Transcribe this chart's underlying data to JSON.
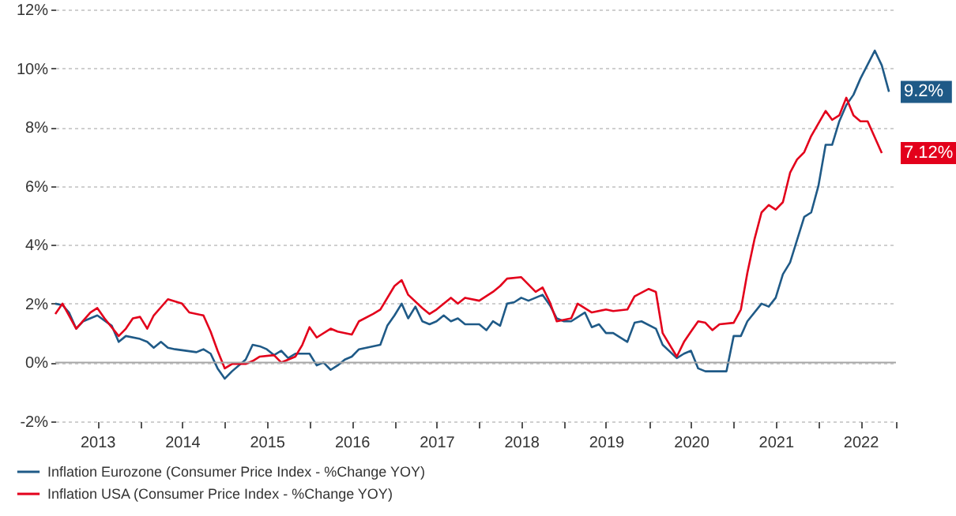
{
  "chart_data": {
    "type": "line",
    "xlim": [
      "2013-01",
      "2022-12"
    ],
    "xticks": [
      {
        "value": "2013-07",
        "label": "2013"
      },
      {
        "value": "2014-01",
        "label": null
      },
      {
        "value": "2014-07",
        "label": "2014"
      },
      {
        "value": "2015-01",
        "label": null
      },
      {
        "value": "2015-07",
        "label": "2015"
      },
      {
        "value": "2016-01",
        "label": null
      },
      {
        "value": "2016-07",
        "label": "2016"
      },
      {
        "value": "2017-01",
        "label": null
      },
      {
        "value": "2017-07",
        "label": "2017"
      },
      {
        "value": "2018-01",
        "label": null
      },
      {
        "value": "2018-07",
        "label": "2018"
      },
      {
        "value": "2019-01",
        "label": null
      },
      {
        "value": "2019-07",
        "label": "2019"
      },
      {
        "value": "2020-01",
        "label": null
      },
      {
        "value": "2020-07",
        "label": "2020"
      },
      {
        "value": "2021-01",
        "label": null
      },
      {
        "value": "2021-07",
        "label": "2021"
      },
      {
        "value": "2022-01",
        "label": null
      },
      {
        "value": "2022-07",
        "label": "2022"
      },
      {
        "value": "2022-12",
        "label": null
      }
    ],
    "ylim": [
      -2,
      12
    ],
    "yticks": [
      {
        "value": -2,
        "label": "-2%"
      },
      {
        "value": 0,
        "label": "0%"
      },
      {
        "value": 2,
        "label": "2%"
      },
      {
        "value": 4,
        "label": "4%"
      },
      {
        "value": 6,
        "label": "6%"
      },
      {
        "value": 8,
        "label": "8%"
      },
      {
        "value": 10,
        "label": "10%"
      },
      {
        "value": 12,
        "label": "12%"
      }
    ],
    "grid": "y",
    "legend": "bottom",
    "marker": "none",
    "line_style": "solid",
    "ref_lines": [
      {
        "axis": "y",
        "value": 0,
        "color": "#a6a6a6"
      }
    ],
    "annotations": [
      {
        "text": "9.2%",
        "x": "2022-11",
        "y": 9.2
      },
      {
        "text": "7.12%",
        "x": "2022-10",
        "y": 7.12
      }
    ],
    "series": [
      {
        "name": "Inflation Eurozone (Consumer Price Index - %Change YOY)",
        "color": "#1f5a87",
        "x": [
          "2013-01",
          "2013-02",
          "2013-03",
          "2013-04",
          "2013-05",
          "2013-07",
          "2013-09",
          "2013-10",
          "2013-11",
          "2014-01",
          "2014-02",
          "2014-03",
          "2014-04",
          "2014-05",
          "2014-06",
          "2014-09",
          "2014-10",
          "2014-11",
          "2014-12",
          "2015-01",
          "2015-02",
          "2015-04",
          "2015-05",
          "2015-06",
          "2015-07",
          "2015-08",
          "2015-09",
          "2015-10",
          "2015-11",
          "2016-01",
          "2016-02",
          "2016-03",
          "2016-04",
          "2016-05",
          "2016-06",
          "2016-07",
          "2016-08",
          "2016-11",
          "2016-12",
          "2017-01",
          "2017-02",
          "2017-03",
          "2017-04",
          "2017-05",
          "2017-06",
          "2017-07",
          "2017-08",
          "2017-09",
          "2017-10",
          "2017-11",
          "2018-01",
          "2018-02",
          "2018-03",
          "2018-04",
          "2018-05",
          "2018-06",
          "2018-07",
          "2018-08",
          "2018-10",
          "2018-11",
          "2018-12",
          "2019-01",
          "2019-02",
          "2019-04",
          "2019-05",
          "2019-06",
          "2019-07",
          "2019-08",
          "2019-10",
          "2019-11",
          "2019-12",
          "2020-02",
          "2020-03",
          "2020-05",
          "2020-06",
          "2020-07",
          "2020-08",
          "2020-09",
          "2020-12",
          "2021-01",
          "2021-02",
          "2021-03",
          "2021-05",
          "2021-06",
          "2021-07",
          "2021-08",
          "2021-09",
          "2021-11",
          "2021-12",
          "2022-01",
          "2022-02",
          "2022-03",
          "2022-04",
          "2022-05",
          "2022-06",
          "2022-07",
          "2022-09",
          "2022-10",
          "2022-11"
        ],
        "values": [
          2.0,
          1.95,
          1.7,
          1.15,
          1.4,
          1.6,
          1.25,
          0.7,
          0.9,
          0.8,
          0.7,
          0.5,
          0.7,
          0.5,
          0.45,
          0.35,
          0.45,
          0.3,
          -0.2,
          -0.55,
          -0.3,
          0.1,
          0.6,
          0.55,
          0.45,
          0.25,
          0.4,
          0.15,
          0.3,
          0.3,
          -0.1,
          0.0,
          -0.25,
          -0.1,
          0.1,
          0.2,
          0.45,
          0.6,
          1.25,
          1.6,
          2.0,
          1.5,
          1.9,
          1.4,
          1.3,
          1.4,
          1.6,
          1.4,
          1.5,
          1.3,
          1.3,
          1.1,
          1.4,
          1.25,
          2.0,
          2.05,
          2.2,
          2.1,
          2.3,
          1.95,
          1.5,
          1.4,
          1.4,
          1.7,
          1.2,
          1.3,
          1.0,
          1.0,
          0.7,
          1.35,
          1.4,
          1.15,
          0.6,
          0.15,
          0.3,
          0.4,
          -0.2,
          -0.3,
          -0.3,
          0.9,
          0.9,
          1.4,
          2.0,
          1.9,
          2.2,
          3.0,
          3.4,
          4.95,
          5.1,
          6.0,
          7.4,
          7.4,
          8.2,
          8.75,
          9.1,
          9.65,
          10.6,
          10.1,
          9.2
        ]
      },
      {
        "name": "Inflation USA (Consumer Price Index - %Change YOY)",
        "color": "#e3001b",
        "x": [
          "2013-01",
          "2013-02",
          "2013-03",
          "2013-04",
          "2013-06",
          "2013-07",
          "2013-08",
          "2013-10",
          "2013-11",
          "2013-12",
          "2014-01",
          "2014-02",
          "2014-03",
          "2014-05",
          "2014-07",
          "2014-08",
          "2014-10",
          "2014-11",
          "2014-12",
          "2015-01",
          "2015-02",
          "2015-04",
          "2015-05",
          "2015-06",
          "2015-08",
          "2015-09",
          "2015-11",
          "2015-12",
          "2016-01",
          "2016-02",
          "2016-04",
          "2016-05",
          "2016-07",
          "2016-08",
          "2016-10",
          "2016-11",
          "2017-01",
          "2017-02",
          "2017-03",
          "2017-05",
          "2017-06",
          "2017-07",
          "2017-09",
          "2017-10",
          "2017-11",
          "2018-01",
          "2018-03",
          "2018-04",
          "2018-05",
          "2018-07",
          "2018-09",
          "2018-10",
          "2018-11",
          "2018-12",
          "2019-02",
          "2019-03",
          "2019-05",
          "2019-07",
          "2019-08",
          "2019-10",
          "2019-11",
          "2020-01",
          "2020-02",
          "2020-03",
          "2020-05",
          "2020-06",
          "2020-07",
          "2020-08",
          "2020-09",
          "2020-10",
          "2020-11",
          "2021-01",
          "2021-02",
          "2021-03",
          "2021-04",
          "2021-05",
          "2021-06",
          "2021-07",
          "2021-08",
          "2021-09",
          "2021-10",
          "2021-11",
          "2021-12",
          "2022-02",
          "2022-03",
          "2022-04",
          "2022-05",
          "2022-06",
          "2022-07",
          "2022-08",
          "2022-10"
        ],
        "values": [
          1.65,
          2.0,
          1.6,
          1.15,
          1.7,
          1.85,
          1.5,
          0.9,
          1.15,
          1.5,
          1.55,
          1.15,
          1.6,
          2.15,
          2.0,
          1.7,
          1.6,
          1.05,
          0.4,
          -0.2,
          -0.05,
          -0.05,
          0.05,
          0.2,
          0.25,
          0.0,
          0.2,
          0.6,
          1.2,
          0.85,
          1.15,
          1.05,
          0.95,
          1.4,
          1.65,
          1.8,
          2.6,
          2.8,
          2.3,
          1.85,
          1.65,
          1.8,
          2.2,
          2.0,
          2.2,
          2.1,
          2.4,
          2.6,
          2.85,
          2.9,
          2.4,
          2.55,
          2.05,
          1.4,
          1.5,
          2.0,
          1.7,
          1.8,
          1.75,
          1.8,
          2.25,
          2.5,
          2.4,
          1.0,
          0.2,
          0.7,
          1.05,
          1.4,
          1.35,
          1.1,
          1.3,
          1.35,
          1.8,
          3.05,
          4.2,
          5.1,
          5.35,
          5.2,
          5.45,
          6.45,
          6.9,
          7.15,
          7.7,
          8.55,
          8.25,
          8.4,
          9.0,
          8.4,
          8.2,
          8.2,
          7.12
        ]
      }
    ]
  }
}
